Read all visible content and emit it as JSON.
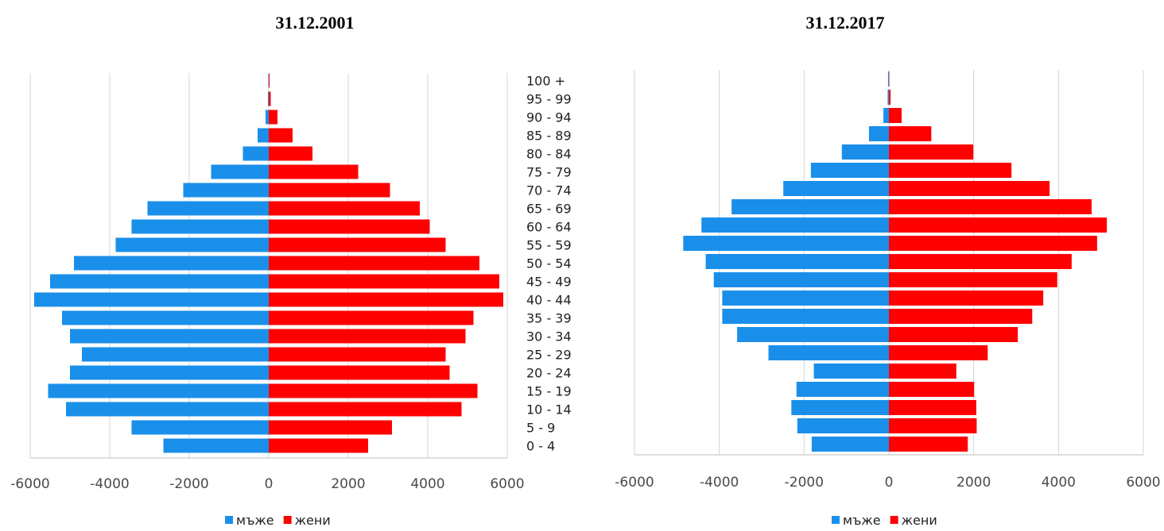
{
  "chart_data": [
    {
      "type": "bar",
      "title": "31.12.2001",
      "categories": [
        "0 - 4",
        "5 - 9",
        "10 - 14",
        "15 - 19",
        "20 - 24",
        "25 - 29",
        "30 - 34",
        "35 - 39",
        "40 - 44",
        "45 - 49",
        "50 - 54",
        "55 - 59",
        "60 - 64",
        "65 - 69",
        "70 - 74",
        "75 - 79",
        "80 - 84",
        "85 - 89",
        "90 - 94",
        "95 - 99",
        "100 +"
      ],
      "series": [
        {
          "name": "мъже",
          "color": "#1a8fea",
          "values": [
            -2650,
            -3450,
            -5100,
            -5550,
            -5000,
            -4700,
            -5000,
            -5200,
            -5900,
            -5500,
            -4900,
            -3850,
            -3450,
            -3050,
            -2150,
            -1450,
            -650,
            -280,
            -80,
            -20,
            -10
          ]
        },
        {
          "name": "жени",
          "color": "#ff0000",
          "values": [
            2500,
            3100,
            4850,
            5250,
            4550,
            4450,
            4950,
            5150,
            5900,
            5800,
            5300,
            4450,
            4050,
            3800,
            3050,
            2250,
            1100,
            600,
            220,
            50,
            20
          ]
        }
      ],
      "xlim": [
        -6000,
        6000
      ],
      "xticks": [
        "-6000",
        "-4000",
        "-2000",
        "0",
        "2000",
        "4000",
        "6000"
      ],
      "legend": "bottom",
      "grid": true
    },
    {
      "type": "bar",
      "title": "31.12.2017",
      "categories": [
        "0 - 4",
        "5 - 9",
        "10 - 14",
        "15 - 19",
        "20 - 24",
        "25 - 29",
        "30 - 34",
        "35 - 39",
        "40 - 44",
        "45 - 49",
        "50 - 54",
        "55 - 59",
        "60 - 64",
        "65 - 69",
        "70 - 74",
        "75 - 79",
        "80 - 84",
        "85 - 89",
        "90 - 94",
        "95 - 99",
        "100 +"
      ],
      "series": [
        {
          "name": "мъже",
          "color": "#1a8fea",
          "values": [
            -1820,
            -2160,
            -2300,
            -2180,
            -1770,
            -2840,
            -3580,
            -3930,
            -3930,
            -4130,
            -4320,
            -4850,
            -4420,
            -3710,
            -2490,
            -1840,
            -1110,
            -470,
            -130,
            -30,
            -20
          ]
        },
        {
          "name": "жени",
          "color": "#ff0000",
          "values": [
            1860,
            2070,
            2060,
            2010,
            1590,
            2330,
            3040,
            3380,
            3640,
            3970,
            4310,
            4910,
            5140,
            4780,
            3790,
            2890,
            1990,
            1000,
            300,
            40,
            10
          ]
        }
      ],
      "xlim": [
        -6000,
        6000
      ],
      "xticks": [
        "-6000",
        "-4000",
        "-2000",
        "0",
        "2000",
        "4000",
        "6000"
      ],
      "legend": "bottom",
      "grid": true
    }
  ]
}
